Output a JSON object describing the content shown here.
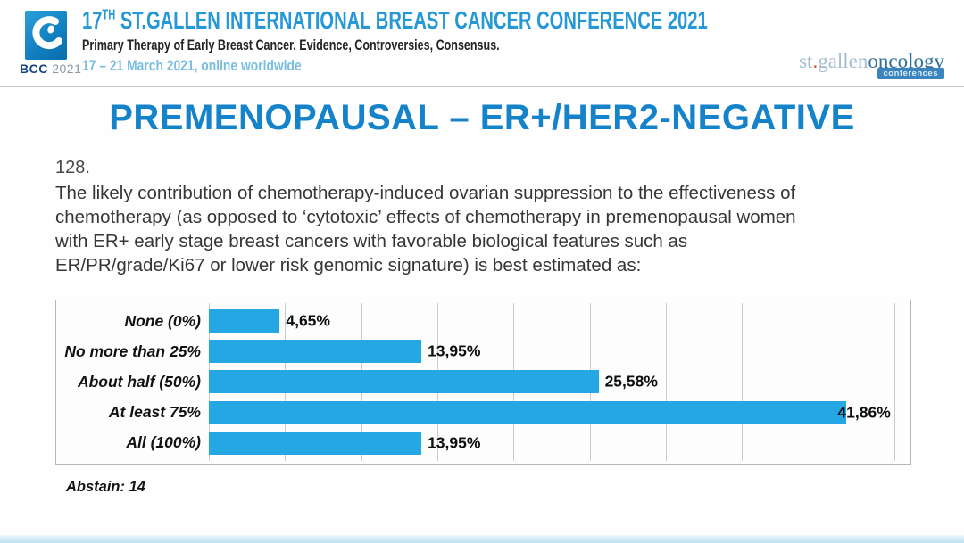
{
  "header": {
    "logo": {
      "bcc": "BCC",
      "year": "2021"
    },
    "title_num": "17",
    "title_sup": "TH",
    "title_rest": " ST.GALLEN INTERNATIONAL BREAST CANCER CONFERENCE 2021",
    "subtitle": "Primary Therapy of Early Breast Cancer. Evidence, Controversies, Consensus.",
    "dates": "17 – 21 March 2021, online worldwide",
    "brand": {
      "st": "st",
      "dot": ".",
      "gallen": "gallen",
      "oncology": "oncology",
      "conferences": "conferences"
    }
  },
  "slide": {
    "title": "PREMENOPAUSAL – ER+/HER2-NEGATIVE",
    "question_number": "128.",
    "question_text": "The likely contribution of chemotherapy-induced ovarian suppression to the effectiveness of\nchemotherapy (as opposed to ‘cytotoxic’ effects of chemotherapy in premenopausal women\nwith ER+ early stage breast cancers with favorable biological features such as\nER/PR/grade/Ki67 or lower risk genomic signature) is best estimated as:",
    "abstain_note": "Abstain: 14"
  },
  "chart_data": {
    "type": "bar",
    "orientation": "horizontal",
    "title": "",
    "categories": [
      "None (0%)",
      "No more than 25%",
      "About half (50%)",
      "At least 75%",
      "All (100%)"
    ],
    "values": [
      4.65,
      13.95,
      25.58,
      41.86,
      13.95
    ],
    "value_labels": [
      "4,65%",
      "13,95%",
      "25,58%",
      "41,86%",
      "13,95%"
    ],
    "xlim": [
      0,
      45
    ],
    "grid_step": 5,
    "grid": "vertical",
    "legend": "none",
    "bar_color": "#25a7e3"
  },
  "colors": {
    "accent_blue": "#1583c9",
    "header_blue": "#2598d5",
    "date_blue": "#79bedf",
    "bar_blue": "#25a7e3",
    "grid_gray": "#c9cbcc"
  }
}
